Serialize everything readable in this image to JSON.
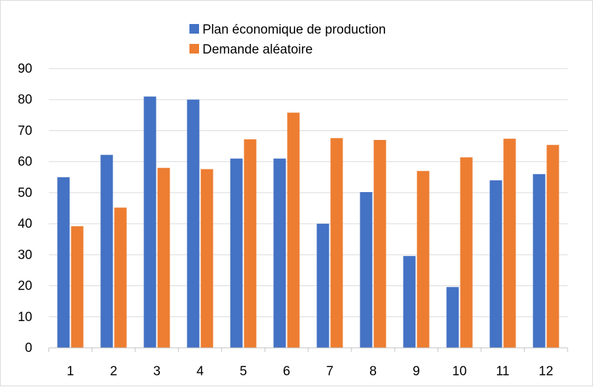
{
  "chart_data": {
    "type": "bar",
    "title": "",
    "xlabel": "",
    "ylabel": "",
    "categories": [
      "1",
      "2",
      "3",
      "4",
      "5",
      "6",
      "7",
      "8",
      "9",
      "10",
      "11",
      "12"
    ],
    "series": [
      {
        "name": "Plan économique de production",
        "color": "#4472c4",
        "values": [
          55,
          62.2,
          81,
          80,
          61,
          61,
          40,
          50.2,
          29.6,
          19.6,
          54,
          56
        ]
      },
      {
        "name": "Demande aléatoire",
        "color": "#ed7d31",
        "values": [
          39.2,
          45.2,
          58,
          57.6,
          67.2,
          75.8,
          67.6,
          67,
          57,
          61.4,
          67.4,
          65.4
        ]
      }
    ],
    "ylim": [
      0,
      90
    ],
    "yticks": [
      "0",
      "10",
      "20",
      "30",
      "40",
      "50",
      "60",
      "70",
      "80",
      "90"
    ],
    "grid": true,
    "legend_position": "top"
  }
}
